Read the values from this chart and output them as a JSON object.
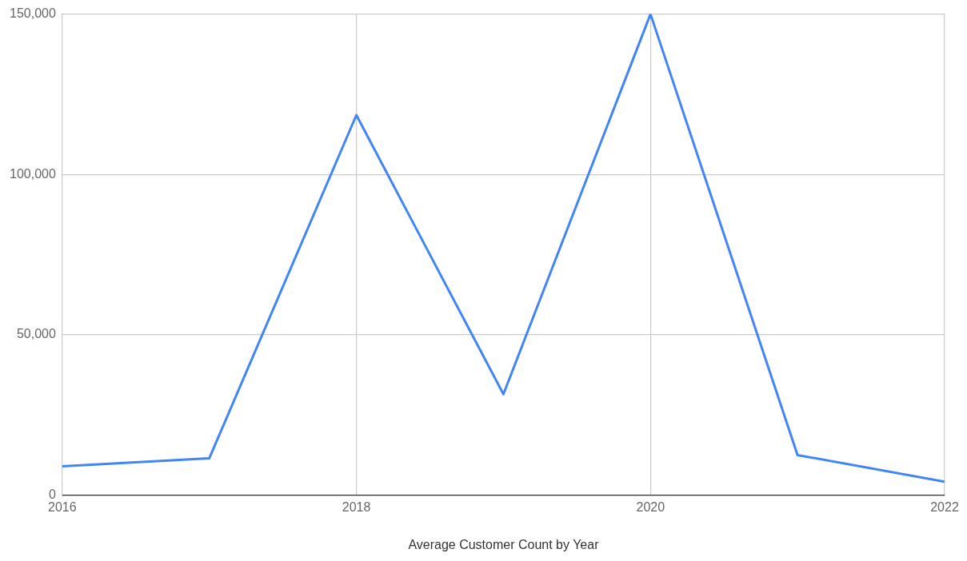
{
  "chart_data": {
    "type": "line",
    "xlabel": "Average Customer Count by Year",
    "x": [
      2016,
      2017,
      2018,
      2019,
      2020,
      2021,
      2022
    ],
    "series": [
      {
        "color": "#4285f4",
        "values": [
          9000,
          11500,
          118500,
          31500,
          150000,
          12500,
          4200
        ]
      }
    ],
    "xlim": [
      2016,
      2022
    ],
    "xticks": [
      {
        "value": 2016,
        "label": "2016"
      },
      {
        "value": 2018,
        "label": "2018"
      },
      {
        "value": 2020,
        "label": "2020"
      },
      {
        "value": 2022,
        "label": "2022"
      }
    ],
    "ylim": [
      0,
      150000
    ],
    "yticks": [
      0,
      {
        "value": 50000,
        "label": "50,000"
      },
      {
        "value": 100000,
        "label": "100,000"
      },
      {
        "value": 150000,
        "label": "150,000"
      }
    ],
    "grid": true,
    "legend": false,
    "marker": "none",
    "line_style": "solid"
  }
}
